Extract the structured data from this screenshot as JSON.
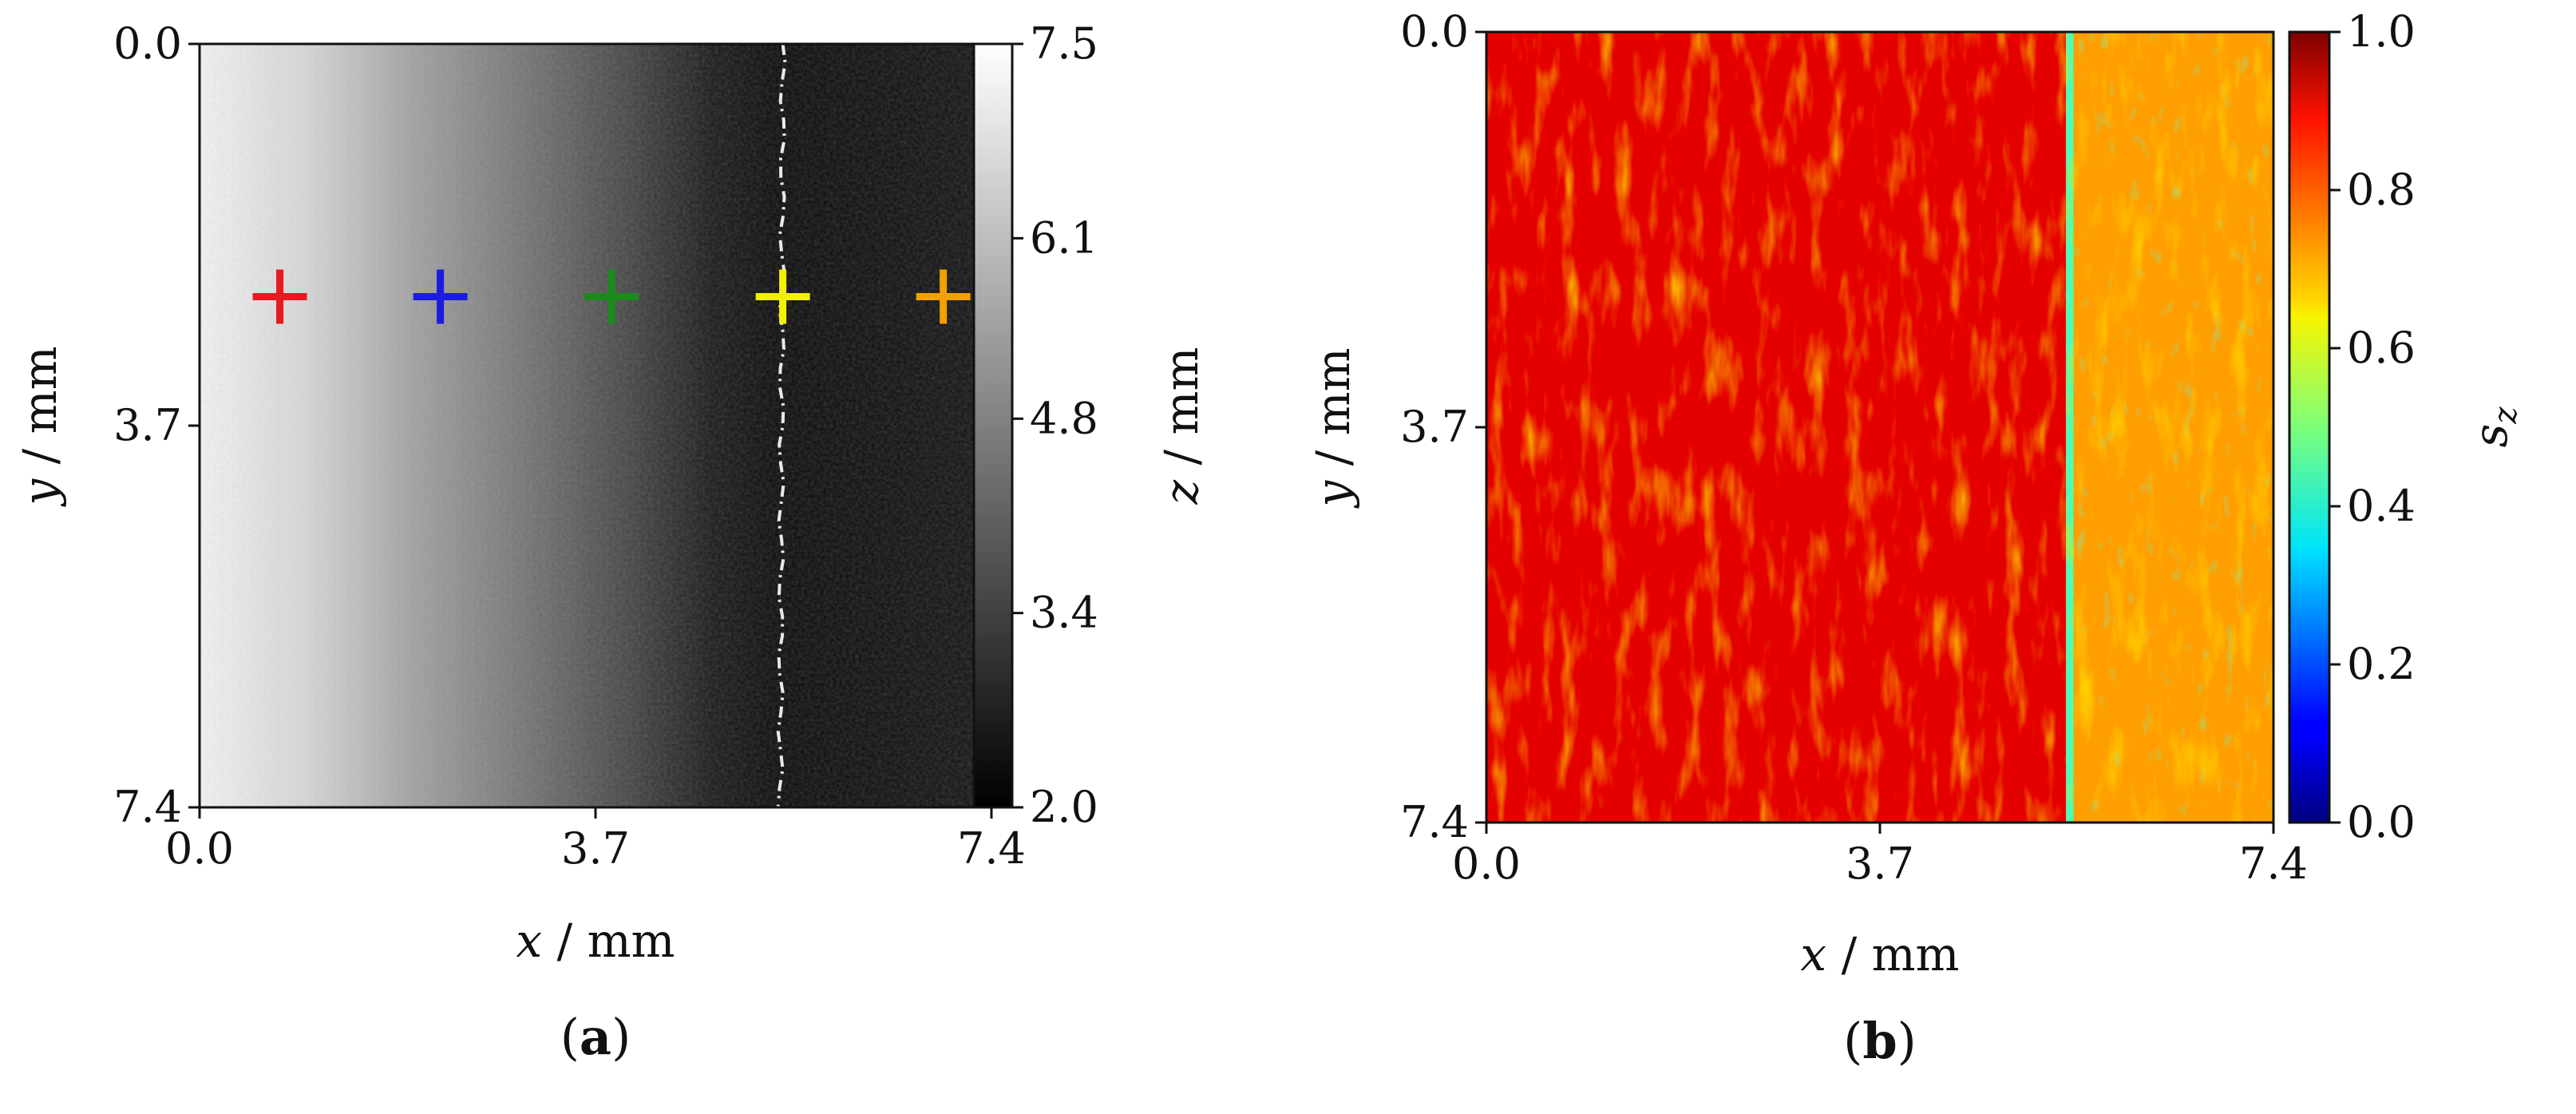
{
  "chart_data": [
    {
      "panel": "(a)",
      "panel_letter": "a",
      "type": "heatmap",
      "colormap": "grayscale",
      "x": {
        "var": "x",
        "unit": "mm",
        "range": [
          0.0,
          7.4
        ],
        "ticks": [
          "0.0",
          "3.7",
          "7.4"
        ]
      },
      "y": {
        "var": "y",
        "unit": "mm",
        "range": [
          0.0,
          7.4
        ],
        "inverted": true,
        "ticks": [
          "0.0",
          "3.7",
          "7.4"
        ]
      },
      "colorbar": {
        "var": "z",
        "unit": "mm",
        "range": [
          2.0,
          7.5
        ],
        "ticks": [
          "2.0",
          "3.4",
          "4.8",
          "6.1",
          "7.5"
        ]
      },
      "field_profile": [
        {
          "x": 0.0,
          "z": 7.2
        },
        {
          "x": 1.0,
          "z": 6.6
        },
        {
          "x": 2.0,
          "z": 5.5
        },
        {
          "x": 3.0,
          "z": 4.6
        },
        {
          "x": 4.0,
          "z": 3.6
        },
        {
          "x": 4.8,
          "z": 2.7
        },
        {
          "x": 5.4,
          "z": 2.4
        },
        {
          "x": 6.5,
          "z": 2.5
        },
        {
          "x": 7.4,
          "z": 2.6
        }
      ],
      "bright_line_x": 5.45,
      "markers": [
        {
          "color": "#e8191f",
          "x": 0.75,
          "y": 2.45
        },
        {
          "color": "#1c1ce0",
          "x": 2.25,
          "y": 2.45
        },
        {
          "color": "#1a8a1a",
          "x": 3.85,
          "y": 2.45
        },
        {
          "color": "#f2f200",
          "x": 5.45,
          "y": 2.45
        },
        {
          "color": "#f5a000",
          "x": 6.95,
          "y": 2.45
        }
      ]
    },
    {
      "panel": "(b)",
      "panel_letter": "b",
      "type": "heatmap",
      "colormap": "jet",
      "x": {
        "var": "x",
        "unit": "mm",
        "range": [
          0.0,
          7.4
        ],
        "ticks": [
          "0.0",
          "3.7",
          "7.4"
        ]
      },
      "y": {
        "var": "y",
        "unit": "mm",
        "range": [
          0.0,
          7.4
        ],
        "inverted": true,
        "ticks": [
          "0.0",
          "3.7",
          "7.4"
        ]
      },
      "colorbar": {
        "var": "s",
        "subscript": "z",
        "unit": "",
        "range": [
          0.0,
          1.0
        ],
        "ticks": [
          "0.0",
          "0.2",
          "0.4",
          "0.6",
          "0.8",
          "1.0"
        ]
      },
      "regions": [
        {
          "x_from": 0.0,
          "x_to": 5.45,
          "mean": 0.9
        },
        {
          "x_from": 5.45,
          "x_to": 5.52,
          "mean": 0.45
        },
        {
          "x_from": 5.52,
          "x_to": 7.4,
          "mean": 0.72
        }
      ]
    }
  ]
}
